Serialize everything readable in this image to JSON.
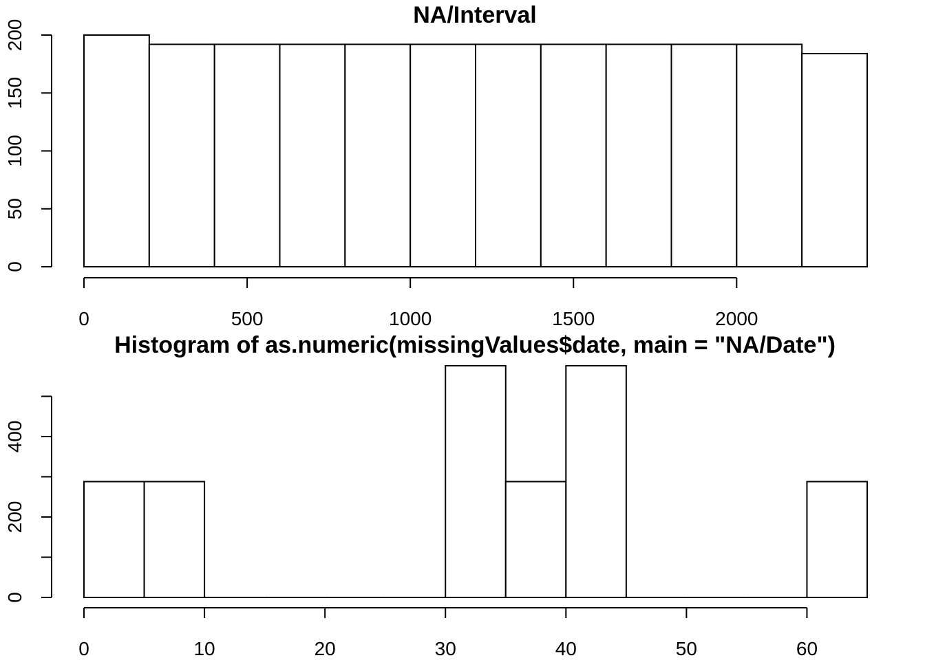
{
  "chart_data": [
    {
      "type": "bar",
      "title": "NA/Interval",
      "xlabel": "",
      "ylabel": "",
      "xlim": [
        0,
        2400
      ],
      "ylim": [
        0,
        200
      ],
      "bins": [
        {
          "from": 0,
          "to": 200,
          "count": 200
        },
        {
          "from": 200,
          "to": 400,
          "count": 192
        },
        {
          "from": 400,
          "to": 600,
          "count": 192
        },
        {
          "from": 600,
          "to": 800,
          "count": 192
        },
        {
          "from": 800,
          "to": 1000,
          "count": 192
        },
        {
          "from": 1000,
          "to": 1200,
          "count": 192
        },
        {
          "from": 1200,
          "to": 1400,
          "count": 192
        },
        {
          "from": 1400,
          "to": 1600,
          "count": 192
        },
        {
          "from": 1600,
          "to": 1800,
          "count": 192
        },
        {
          "from": 1800,
          "to": 2000,
          "count": 192
        },
        {
          "from": 2000,
          "to": 2200,
          "count": 192
        },
        {
          "from": 2200,
          "to": 2400,
          "count": 184
        }
      ],
      "x_ticks": [
        "0",
        "500",
        "1000",
        "1500",
        "2000"
      ],
      "x_tick_values": [
        0,
        500,
        1000,
        1500,
        2000
      ],
      "y_ticks": [
        "0",
        "50",
        "100",
        "150",
        "200"
      ],
      "y_tick_values": [
        0,
        50,
        100,
        150,
        200
      ],
      "grid": false
    },
    {
      "type": "bar",
      "title": "Histogram of as.numeric(missingValues$date, main = \"NA/Date\")",
      "xlabel": "",
      "ylabel": "",
      "xlim": [
        0,
        65
      ],
      "ylim": [
        0,
        576
      ],
      "bins": [
        {
          "from": 0,
          "to": 5,
          "count": 288
        },
        {
          "from": 5,
          "to": 10,
          "count": 288
        },
        {
          "from": 10,
          "to": 15,
          "count": 0
        },
        {
          "from": 15,
          "to": 20,
          "count": 0
        },
        {
          "from": 20,
          "to": 25,
          "count": 0
        },
        {
          "from": 25,
          "to": 30,
          "count": 0
        },
        {
          "from": 30,
          "to": 35,
          "count": 576
        },
        {
          "from": 35,
          "to": 40,
          "count": 288
        },
        {
          "from": 40,
          "to": 45,
          "count": 576
        },
        {
          "from": 45,
          "to": 50,
          "count": 0
        },
        {
          "from": 50,
          "to": 55,
          "count": 0
        },
        {
          "from": 55,
          "to": 60,
          "count": 0
        },
        {
          "from": 60,
          "to": 65,
          "count": 288
        }
      ],
      "x_ticks": [
        "0",
        "10",
        "20",
        "30",
        "40",
        "50",
        "60"
      ],
      "x_tick_values": [
        0,
        10,
        20,
        30,
        40,
        50,
        60
      ],
      "y_ticks": [
        "0",
        "200",
        "400"
      ],
      "y_tick_values": [
        0,
        200,
        400
      ],
      "y_minor_tick_values": [
        100,
        300,
        500
      ],
      "grid": false
    }
  ]
}
